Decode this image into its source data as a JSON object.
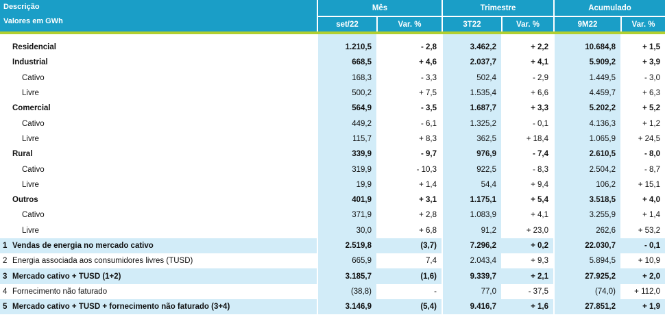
{
  "header": {
    "desc_line1": "Descrição",
    "desc_line2": "Valores em GWh",
    "groups": [
      "Mês",
      "Trimestre",
      "Acumulado"
    ],
    "cols": [
      "set/22",
      "Var. %",
      "3T22",
      "Var. %",
      "9M22",
      "Var. %"
    ]
  },
  "rows": [
    {
      "label": "Residencial",
      "bold": true,
      "values": [
        "1.210,5",
        "- 2,8",
        "3.462,2",
        "+ 2,2",
        "10.684,8",
        "+ 1,5"
      ]
    },
    {
      "label": "Industrial",
      "bold": true,
      "values": [
        "668,5",
        "+ 4,6",
        "2.037,7",
        "+ 4,1",
        "5.909,2",
        "+ 3,9"
      ]
    },
    {
      "label": "Cativo",
      "bold": false,
      "values": [
        "168,3",
        "- 3,3",
        "502,4",
        "- 2,9",
        "1.449,5",
        "- 3,0"
      ]
    },
    {
      "label": "Livre",
      "bold": false,
      "values": [
        "500,2",
        "+ 7,5",
        "1.535,4",
        "+ 6,6",
        "4.459,7",
        "+ 6,3"
      ]
    },
    {
      "label": "Comercial",
      "bold": true,
      "values": [
        "564,9",
        "- 3,5",
        "1.687,7",
        "+ 3,3",
        "5.202,2",
        "+ 5,2"
      ]
    },
    {
      "label": "Cativo",
      "bold": false,
      "values": [
        "449,2",
        "- 6,1",
        "1.325,2",
        "- 0,1",
        "4.136,3",
        "+ 1,2"
      ]
    },
    {
      "label": "Livre",
      "bold": false,
      "values": [
        "115,7",
        "+ 8,3",
        "362,5",
        "+ 18,4",
        "1.065,9",
        "+ 24,5"
      ]
    },
    {
      "label": "Rural",
      "bold": true,
      "values": [
        "339,9",
        "- 9,7",
        "976,9",
        "- 7,4",
        "2.610,5",
        "- 8,0"
      ]
    },
    {
      "label": "Cativo",
      "bold": false,
      "values": [
        "319,9",
        "- 10,3",
        "922,5",
        "- 8,3",
        "2.504,2",
        "- 8,7"
      ]
    },
    {
      "label": "Livre",
      "bold": false,
      "values": [
        "19,9",
        "+ 1,4",
        "54,4",
        "+ 9,4",
        "106,2",
        "+ 15,1"
      ]
    },
    {
      "label": "Outros",
      "bold": true,
      "values": [
        "401,9",
        "+ 3,1",
        "1.175,1",
        "+ 5,4",
        "3.518,5",
        "+ 4,0"
      ]
    },
    {
      "label": "Cativo",
      "bold": false,
      "values": [
        "371,9",
        "+ 2,8",
        "1.083,9",
        "+ 4,1",
        "3.255,9",
        "+ 1,4"
      ]
    },
    {
      "label": "Livre",
      "bold": false,
      "values": [
        "30,0",
        "+ 6,8",
        "91,2",
        "+ 23,0",
        "262,6",
        "+ 53,2"
      ]
    }
  ],
  "totals": [
    {
      "num": "1",
      "label": "Vendas de energia no mercado cativo",
      "bold": true,
      "shaded": true,
      "values": [
        "2.519,8",
        "(3,7)",
        "7.296,2",
        "+ 0,2",
        "22.030,7",
        "- 0,1"
      ]
    },
    {
      "num": "2",
      "label": "Energia associada aos consumidores livres (TUSD)",
      "bold": false,
      "shaded": false,
      "values": [
        "665,9",
        "7,4",
        "2.043,4",
        "+ 9,3",
        "5.894,5",
        "+ 10,9"
      ]
    },
    {
      "num": "3",
      "label": "Mercado cativo + TUSD (1+2)",
      "bold": true,
      "shaded": true,
      "values": [
        "3.185,7",
        "(1,6)",
        "9.339,7",
        "+ 2,1",
        "27.925,2",
        "+ 2,0"
      ]
    },
    {
      "num": "4",
      "label": "Fornecimento não faturado",
      "bold": false,
      "shaded": false,
      "values": [
        "(38,8)",
        "-",
        "77,0",
        "- 37,5",
        "(74,0)",
        "+ 112,0"
      ]
    },
    {
      "num": "5",
      "label": "Mercado cativo + TUSD + fornecimento não faturado (3+4)",
      "bold": true,
      "shaded": true,
      "values": [
        "3.146,9",
        "(5,4)",
        "9.416,7",
        "+ 1,6",
        "27.851,2",
        "+ 1,9"
      ]
    }
  ],
  "colors": {
    "header_bg": "#1a9ec7",
    "accent_line": "#b2cf2f",
    "shade": "#d2ecf8"
  }
}
